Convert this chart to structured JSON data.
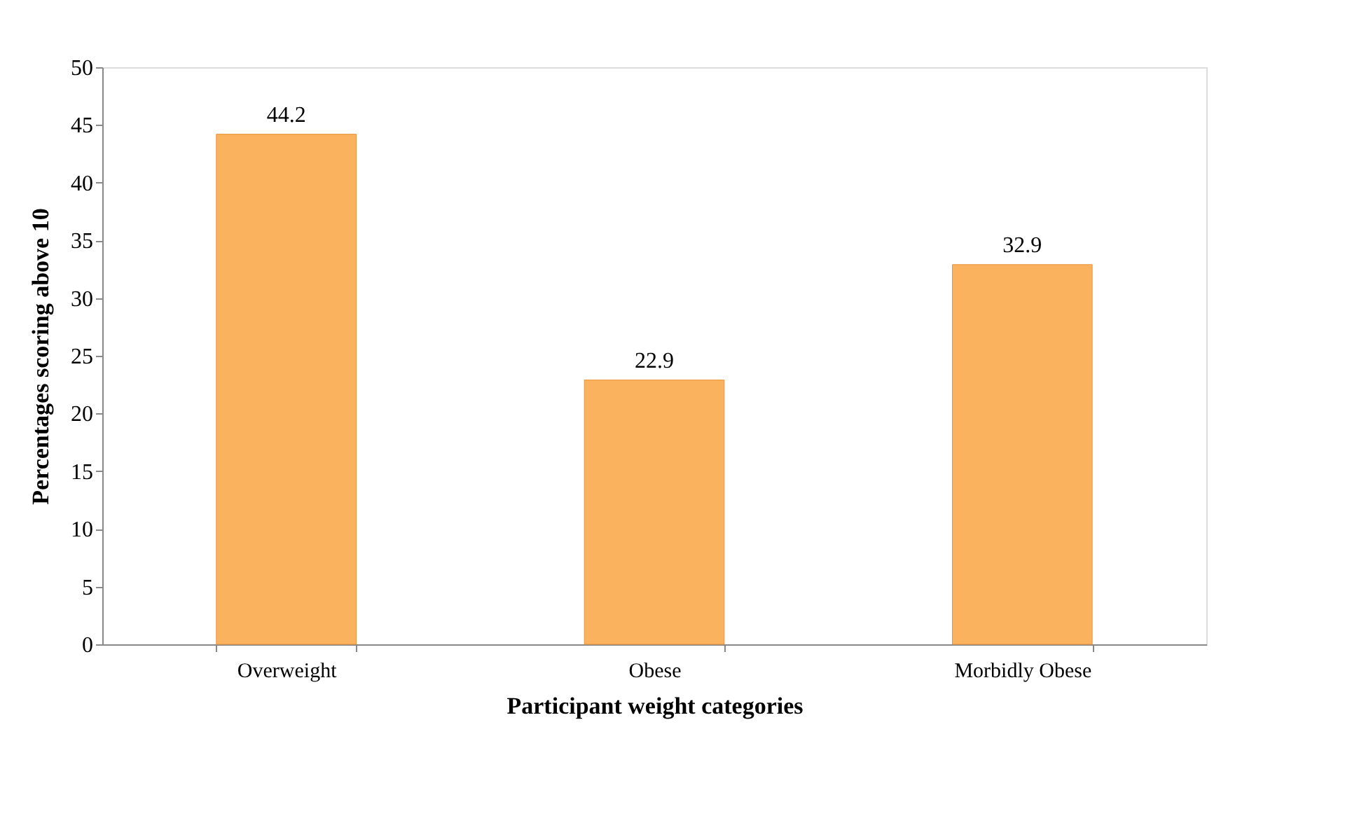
{
  "chart_data": {
    "type": "bar",
    "categories": [
      "Overweight",
      "Obese",
      "Morbidly Obese"
    ],
    "values": [
      44.2,
      22.9,
      32.9
    ],
    "color": "#fbb25e",
    "xlabel": "Participant weight categories",
    "ylabel": "Percentages scoring above  10",
    "ylim": [
      0,
      50
    ],
    "yticks": [
      0,
      5,
      10,
      15,
      20,
      25,
      30,
      35,
      40,
      45,
      50
    ],
    "grid": false,
    "data_labels": true
  }
}
